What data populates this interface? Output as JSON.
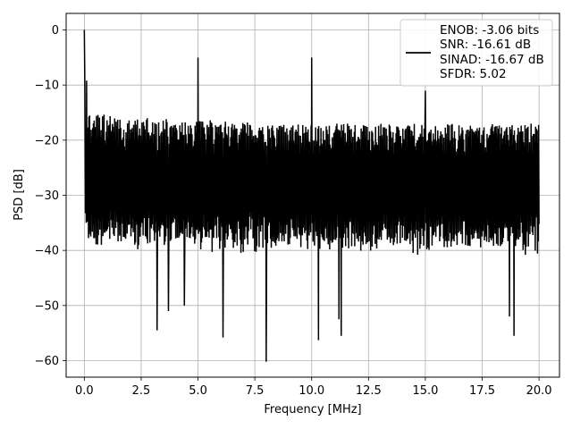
{
  "chart_data": {
    "type": "line",
    "title": "",
    "xlabel": "Frequency [MHz]",
    "ylabel": "PSD [dB]",
    "xlim": [
      -0.8,
      20.9
    ],
    "ylim": [
      -63,
      3
    ],
    "x_ticks": [
      0.0,
      2.5,
      5.0,
      7.5,
      10.0,
      12.5,
      15.0,
      17.5,
      20.0
    ],
    "x_tick_labels": [
      "0.0",
      "2.5",
      "5.0",
      "7.5",
      "10.0",
      "12.5",
      "15.0",
      "17.5",
      "20.0"
    ],
    "y_ticks": [
      0,
      -10,
      -20,
      -30,
      -40,
      -50,
      -60
    ],
    "y_tick_labels": [
      "0",
      "−10",
      "−20",
      "−30",
      "−40",
      "−50",
      "−60"
    ],
    "grid": true,
    "legend_position": "top-right",
    "series": [
      {
        "name": "ENOB: -3.06 bits\nSNR: -16.61 dB\nSINAD: -16.67 dB\nSFDR: 5.02",
        "legend_lines": [
          "ENOB: -3.06 bits",
          "SNR: -16.61 dB",
          "SINAD: -16.67 dB",
          "SFDR: 5.02"
        ],
        "color": "#000000",
        "x_range": [
          0.0,
          20.0
        ],
        "n_points": 1200,
        "noise_floor_mean_db": -28,
        "noise_upper_envelope_db": -17,
        "noise_lower_envelope_db": -40,
        "spikes": [
          {
            "x": 0.0,
            "y": 0.0
          },
          {
            "x": 0.02,
            "y": -8.5
          },
          {
            "x": 0.1,
            "y": -9.2
          },
          {
            "x": 5.0,
            "y": -5.0
          },
          {
            "x": 10.0,
            "y": -5.0
          },
          {
            "x": 15.0,
            "y": -11.0
          }
        ],
        "dips": [
          {
            "x": 3.2,
            "y": -54.5
          },
          {
            "x": 3.7,
            "y": -51.0
          },
          {
            "x": 4.4,
            "y": -50.0
          },
          {
            "x": 6.1,
            "y": -55.8
          },
          {
            "x": 8.0,
            "y": -60.2
          },
          {
            "x": 10.3,
            "y": -56.3
          },
          {
            "x": 11.2,
            "y": -52.5
          },
          {
            "x": 11.3,
            "y": -55.5
          },
          {
            "x": 18.9,
            "y": -55.5
          },
          {
            "x": 18.7,
            "y": -52.0
          }
        ]
      }
    ]
  }
}
